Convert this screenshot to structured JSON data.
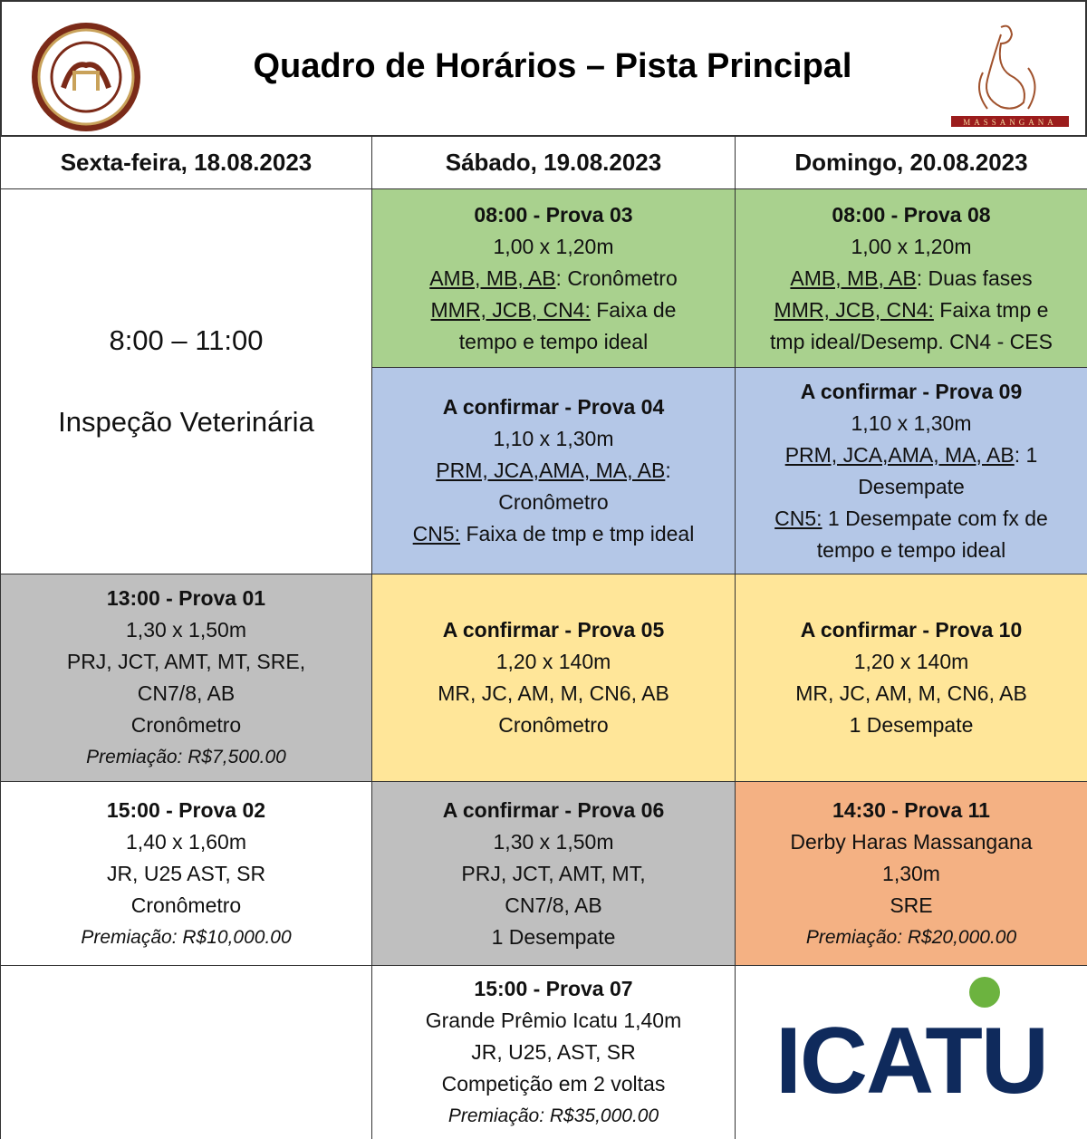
{
  "header": {
    "title": "Quadro de Horários – Pista Principal",
    "logo_text": "MASSANGANA"
  },
  "table": {
    "columns": [
      "Sexta-feira, 18.08.2023",
      "Sábado, 19.08.2023",
      "Domingo, 20.08.2023"
    ],
    "cells": [
      {
        "color": "#ffffff",
        "lines": [
          {
            "text": "8:00 – 11:00",
            "style": "big"
          },
          {
            "text": "Inspeção Veterinária",
            "style": "big"
          }
        ]
      },
      {
        "color": "#a9d18e",
        "lines": [
          {
            "text": "08:00 - Prova 03",
            "style": "bold"
          },
          {
            "text": "1,00 x 1,20m"
          },
          {
            "underlined": "AMB, MB, AB",
            "text": ": Cronômetro"
          },
          {
            "underlined": "MMR, JCB, CN4:",
            "text": " Faixa de"
          },
          {
            "text": "tempo e tempo ideal"
          }
        ]
      },
      {
        "color": "#a9d18e",
        "lines": [
          {
            "text": "08:00 - Prova 08",
            "style": "bold"
          },
          {
            "text": "1,00 x 1,20m"
          },
          {
            "underlined": "AMB, MB, AB",
            "text": ": Duas fases"
          },
          {
            "underlined": "MMR, JCB, CN4:",
            "text": " Faixa tmp e"
          },
          {
            "text": "tmp ideal/Desemp. CN4 - CES"
          }
        ]
      },
      {
        "color": "#b4c7e7",
        "lines": [
          {
            "text": "A confirmar - Prova 04",
            "style": "bold"
          },
          {
            "text": "1,10 x 1,30m"
          },
          {
            "underlined": "PRM, JCA,AMA, MA, AB",
            "text": ":"
          },
          {
            "text": "Cronômetro"
          },
          {
            "underlined": "CN5:",
            "text": " Faixa de tmp e tmp ideal"
          }
        ]
      },
      {
        "color": "#b4c7e7",
        "lines": [
          {
            "text": "A confirmar  - Prova 09",
            "style": "bold"
          },
          {
            "text": "1,10 x 1,30m"
          },
          {
            "underlined": "PRM, JCA,AMA, MA, AB",
            "text": ": 1"
          },
          {
            "text": "Desempate"
          },
          {
            "underlined": "CN5:",
            "text": " 1 Desempate com fx de"
          },
          {
            "text": "tempo e tempo ideal"
          }
        ]
      },
      {
        "color": "#bfbfbf",
        "lines": [
          {
            "text": "13:00 - Prova 01",
            "style": "bold"
          },
          {
            "text": "1,30 x 1,50m"
          },
          {
            "text": "PRJ, JCT, AMT, MT, SRE,"
          },
          {
            "text": "CN7/8, AB"
          },
          {
            "text": "Cronômetro"
          },
          {
            "text": "Premiação: R$7,500.00",
            "style": "italic"
          }
        ]
      },
      {
        "color": "#ffe699",
        "lines": [
          {
            "text": "A confirmar  - Prova 05",
            "style": "bold"
          },
          {
            "text": "1,20 x 140m"
          },
          {
            "text": "MR, JC, AM, M, CN6, AB"
          },
          {
            "text": "Cronômetro"
          }
        ]
      },
      {
        "color": "#ffe699",
        "lines": [
          {
            "text": "A confirmar  - Prova 10",
            "style": "bold"
          },
          {
            "text": "1,20 x 140m"
          },
          {
            "text": "MR, JC, AM, M, CN6, AB"
          },
          {
            "text": "1 Desempate"
          }
        ]
      },
      {
        "color": "#ffffff",
        "lines": [
          {
            "text": "15:00 - Prova 02",
            "style": "bold"
          },
          {
            "text": "1,40 x 1,60m"
          },
          {
            "text": "JR, U25 AST, SR"
          },
          {
            "text": "Cronômetro"
          },
          {
            "text": "Premiação: R$10,000.00",
            "style": "italic"
          }
        ]
      },
      {
        "color": "#bfbfbf",
        "lines": [
          {
            "text": "A confirmar  - Prova 06",
            "style": "bold"
          },
          {
            "text": "1,30 x 1,50m"
          },
          {
            "text": "PRJ, JCT, AMT, MT,"
          },
          {
            "text": "CN7/8, AB"
          },
          {
            "text": "1 Desempate"
          }
        ]
      },
      {
        "color": "#f4b183",
        "lines": [
          {
            "text": "14:30 - Prova 11",
            "style": "bold"
          },
          {
            "text": "Derby Haras Massangana"
          },
          {
            "text": "1,30m"
          },
          {
            "text": "SRE"
          },
          {
            "text": "Premiação: R$20,000.00",
            "style": "italic"
          }
        ]
      },
      {
        "color": "#ffffff",
        "lines": []
      },
      {
        "color": "#ffffff",
        "lines": [
          {
            "text": "15:00 - Prova 07",
            "style": "bold"
          },
          {
            "text": "Grande Prêmio Icatu 1,40m"
          },
          {
            "text": "JR, U25, AST, SR"
          },
          {
            "text": "Competição em 2 voltas"
          },
          {
            "text": "Premiação: R$35,000.00",
            "style": "italic"
          }
        ]
      },
      {
        "color": "#ffffff",
        "logo": "ICATU",
        "lines": []
      }
    ]
  }
}
